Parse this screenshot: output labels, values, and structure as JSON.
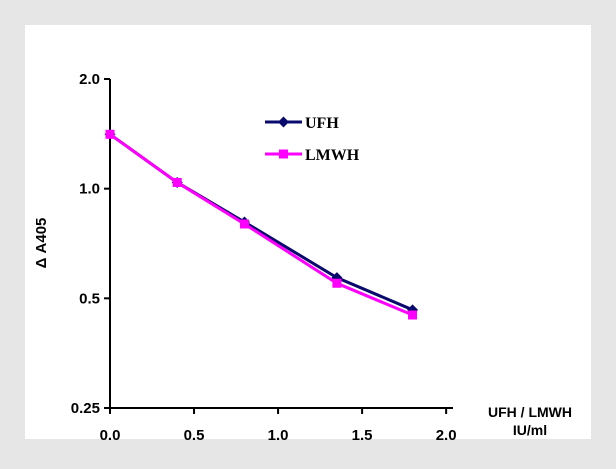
{
  "chart_data": {
    "type": "line",
    "title": "",
    "xlabel_line1": "UFH / LMWH",
    "xlabel_line2": "IU/ml",
    "ylabel": "Δ A405",
    "y_scale": "log",
    "ylim": [
      0.25,
      2.0
    ],
    "xlim": [
      0.0,
      2.0
    ],
    "x_ticks": [
      "0.0",
      "0.5",
      "1.0",
      "1.5",
      "2.0"
    ],
    "y_ticks": [
      "0.25",
      "0.5",
      "1.0",
      "2.0"
    ],
    "y_tick_values": [
      0.25,
      0.5,
      1.0,
      2.0
    ],
    "x_tick_values": [
      0.0,
      0.5,
      1.0,
      1.5,
      2.0
    ],
    "grid": false,
    "legend_position": "top-right",
    "series": [
      {
        "name": "UFH",
        "color": "#0a0a6e",
        "marker": "diamond",
        "x": [
          0.0,
          0.4,
          0.8,
          1.35,
          1.8
        ],
        "y": [
          1.41,
          1.04,
          0.81,
          0.57,
          0.465
        ]
      },
      {
        "name": "LMWH",
        "color": "#ff00ff",
        "marker": "square",
        "x": [
          0.0,
          0.4,
          0.8,
          1.35,
          1.8
        ],
        "y": [
          1.41,
          1.04,
          0.8,
          0.55,
          0.45
        ]
      }
    ]
  }
}
